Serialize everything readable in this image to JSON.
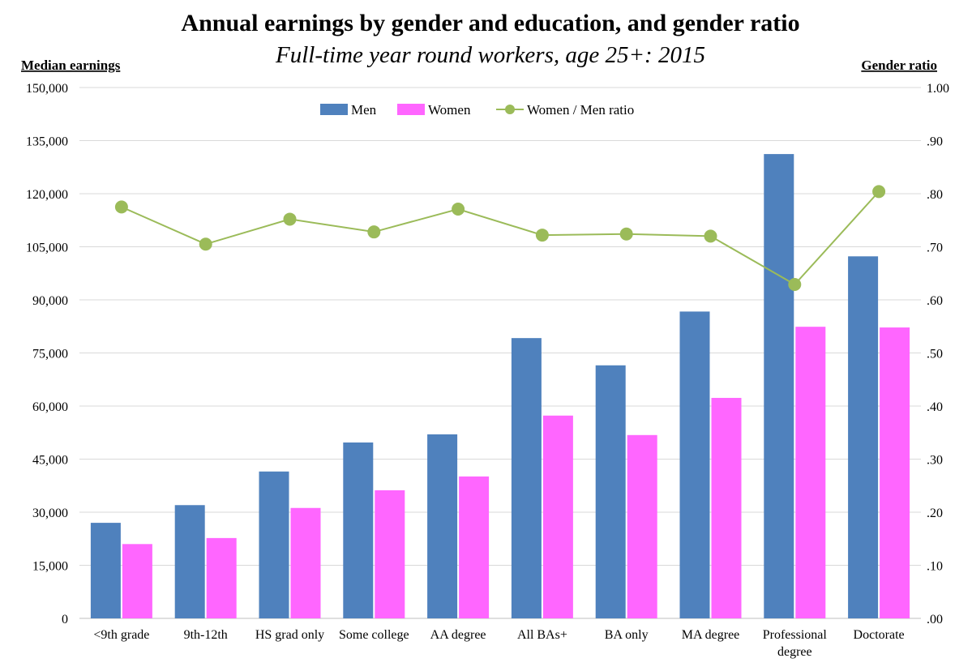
{
  "chart_data": {
    "type": "bar",
    "title": "Annual earnings by gender and education, and gender ratio",
    "subtitle": "Full-time year round workers, age 25+: 2015",
    "ylabel": "Median earnings",
    "y2label": "Gender ratio",
    "ylim": [
      0,
      150000
    ],
    "y2lim": [
      0,
      1.0
    ],
    "yticks": [
      "0",
      "15,000",
      "30,000",
      "45,000",
      "60,000",
      "75,000",
      "90,000",
      "105,000",
      "120,000",
      "135,000",
      "150,000"
    ],
    "y2ticks": [
      ".00",
      ".10",
      ".20",
      ".30",
      ".40",
      ".50",
      ".60",
      ".70",
      ".80",
      ".90",
      "1.00"
    ],
    "categories": [
      [
        "<9th grade"
      ],
      [
        "9th-12th"
      ],
      [
        "HS grad only"
      ],
      [
        "Some college"
      ],
      [
        "AA degree"
      ],
      [
        "All BAs+"
      ],
      [
        "BA only"
      ],
      [
        "MA degree"
      ],
      [
        "Professional",
        "degree"
      ],
      [
        "Doctorate"
      ]
    ],
    "series": [
      {
        "name": "Men",
        "type": "bar",
        "color": "#4f81bd",
        "values": [
          27000,
          32000,
          41500,
          49700,
          52000,
          79200,
          71500,
          86700,
          131200,
          102300
        ]
      },
      {
        "name": "Women",
        "type": "bar",
        "color": "#ff66ff",
        "values": [
          21000,
          22700,
          31200,
          36200,
          40100,
          57300,
          51800,
          62300,
          82400,
          82200
        ]
      },
      {
        "name": "Women / Men ratio",
        "type": "line",
        "axis": "right",
        "color": "#9bbb59",
        "values": [
          0.775,
          0.705,
          0.752,
          0.728,
          0.771,
          0.722,
          0.724,
          0.72,
          0.629,
          0.804
        ]
      }
    ],
    "legend_position": "top-center",
    "grid": true
  }
}
